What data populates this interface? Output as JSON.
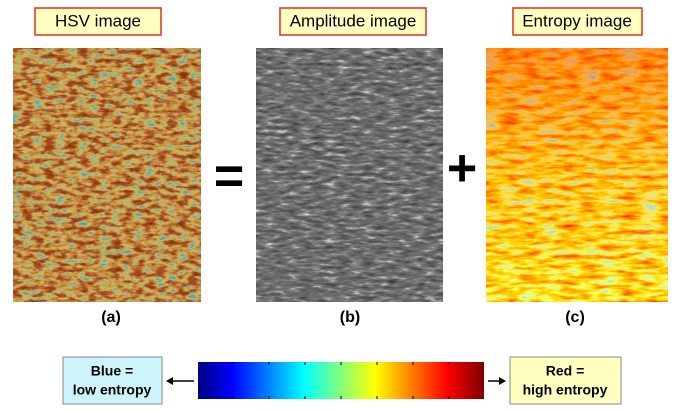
{
  "panels": [
    {
      "title": "HSV image",
      "label": "(a)"
    },
    {
      "title": "Amplitude image",
      "label": "(b)"
    },
    {
      "title": "Entropy image",
      "label": "(c)"
    }
  ],
  "operators": [
    "=",
    "+"
  ],
  "legend": {
    "low": [
      "Blue =",
      "low entropy"
    ],
    "high": [
      "Red =",
      "high entropy"
    ]
  }
}
